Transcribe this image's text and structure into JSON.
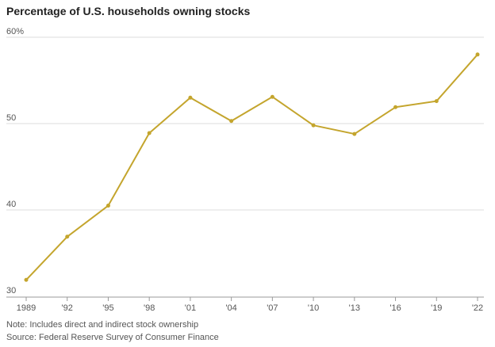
{
  "chart_data": {
    "type": "line",
    "title": "Percentage of U.S. households owning stocks",
    "x": [
      "1989",
      "'92",
      "'95",
      "'98",
      "'01",
      "'04",
      "'07",
      "'10",
      "'13",
      "'16",
      "'19",
      "'22"
    ],
    "series": [
      {
        "values": [
          31.9,
          36.9,
          40.5,
          48.9,
          53.0,
          50.3,
          53.1,
          49.8,
          48.8,
          51.9,
          52.6,
          58.0
        ],
        "color": "#C4A52D"
      }
    ],
    "yticks": [
      "30",
      "40",
      "50",
      "60%"
    ],
    "ytick_values": [
      30,
      40,
      50,
      60
    ],
    "ylim": [
      30,
      60
    ],
    "grid": true,
    "notes": [
      "Note: Includes direct and indirect stock ownership",
      "Source: Federal Reserve Survey of Consumer Finance"
    ]
  }
}
